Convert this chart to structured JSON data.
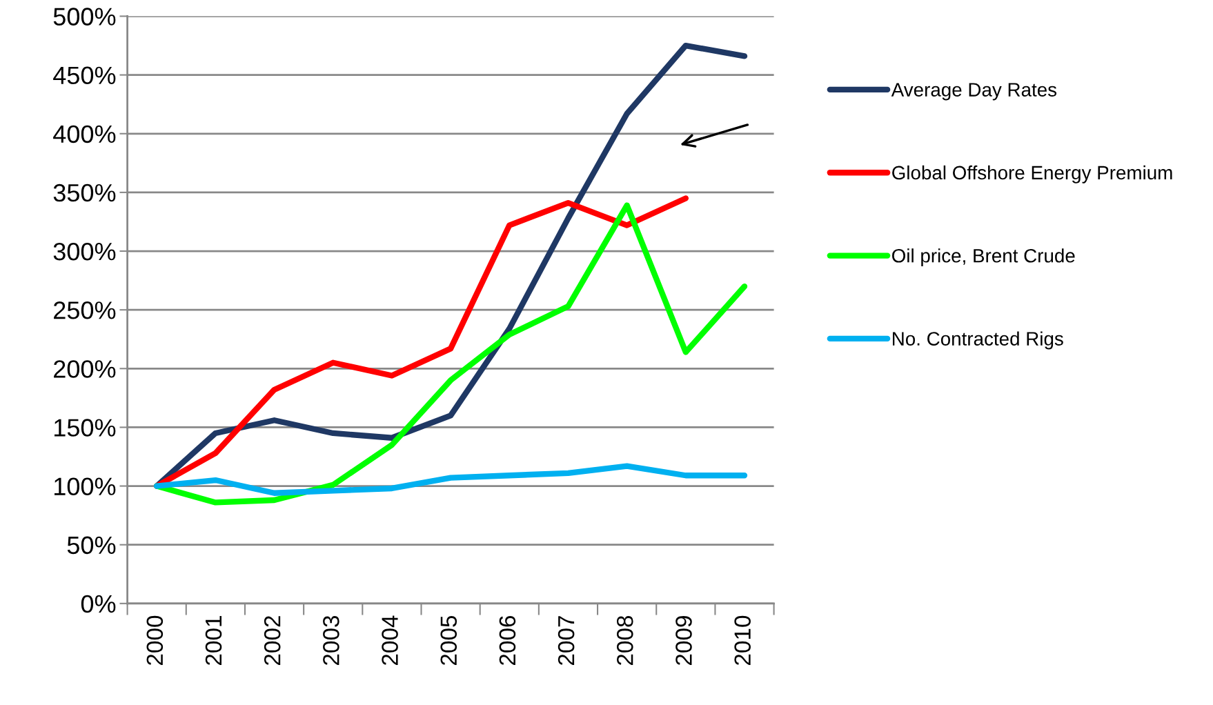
{
  "chart_data": {
    "type": "line",
    "categories": [
      "2000",
      "2001",
      "2002",
      "2003",
      "2004",
      "2005",
      "2006",
      "2007",
      "2008",
      "2009",
      "2010"
    ],
    "series": [
      {
        "name": "Average Day Rates",
        "color": "#1f3864",
        "values": [
          100,
          145,
          156,
          145,
          141,
          160,
          234,
          328,
          417,
          475,
          466
        ]
      },
      {
        "name": "Global Offshore Energy Premium",
        "color": "#ff0000",
        "values": [
          100,
          128,
          182,
          205,
          194,
          217,
          322,
          341,
          322,
          345,
          null
        ]
      },
      {
        "name": "Oil price, Brent Crude",
        "color": "#00ff00",
        "values": [
          100,
          86,
          88,
          101,
          135,
          190,
          229,
          253,
          339,
          214,
          270
        ]
      },
      {
        "name": "No. Contracted Rigs",
        "color": "#00b0f0",
        "values": [
          100,
          105,
          94,
          96,
          98,
          107,
          109,
          111,
          117,
          109,
          109
        ]
      }
    ],
    "ylim": [
      0,
      500
    ],
    "yticks": [
      {
        "value": 0,
        "label": "0%"
      },
      {
        "value": 50,
        "label": "50%"
      },
      {
        "value": 100,
        "label": "100%"
      },
      {
        "value": 150,
        "label": "150%"
      },
      {
        "value": 200,
        "label": "200%"
      },
      {
        "value": 250,
        "label": "250%"
      },
      {
        "value": 300,
        "label": "300%"
      },
      {
        "value": 350,
        "label": "350%"
      },
      {
        "value": 400,
        "label": "400%"
      },
      {
        "value": 450,
        "label": "450%"
      },
      {
        "value": 500,
        "label": "500%"
      }
    ],
    "grid": "y",
    "legend": "right",
    "marker": "none",
    "line_style": "solid"
  }
}
